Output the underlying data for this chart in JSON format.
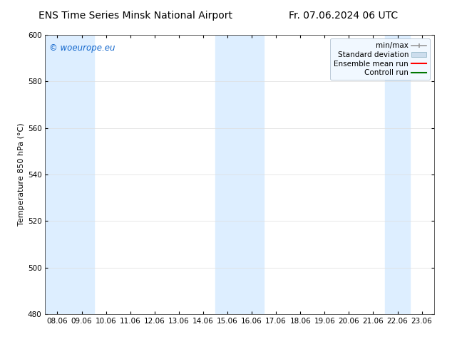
{
  "title_left": "ENS Time Series Minsk National Airport",
  "title_right": "Fr. 07.06.2024 06 UTC",
  "ylabel": "Temperature 850 hPa (°C)",
  "xlim_dates": [
    "08.06",
    "09.06",
    "10.06",
    "11.06",
    "12.06",
    "13.06",
    "14.06",
    "15.06",
    "16.06",
    "17.06",
    "18.06",
    "19.06",
    "20.06",
    "21.06",
    "22.06",
    "23.06"
  ],
  "ylim": [
    480,
    600
  ],
  "yticks": [
    480,
    500,
    520,
    540,
    560,
    580,
    600
  ],
  "watermark": "© woeurope.eu",
  "watermark_color": "#1166cc",
  "bg_color": "#ffffff",
  "plot_bg_color": "#ffffff",
  "band_color": "#ddeeff",
  "band_alpha": 1.0,
  "band_ranges": [
    [
      0,
      2
    ],
    [
      7,
      9
    ],
    [
      14,
      15
    ]
  ],
  "minmax_color": "#999999",
  "std_color": "#ccdded",
  "std_edge_color": "#99bbcc",
  "ensemble_mean_color": "#ff0000",
  "control_run_color": "#007700",
  "legend_labels": [
    "min/max",
    "Standard deviation",
    "Ensemble mean run",
    "Controll run"
  ],
  "title_fontsize": 10,
  "axis_label_fontsize": 8,
  "tick_fontsize": 7.5,
  "legend_fontsize": 7.5,
  "watermark_fontsize": 8.5
}
